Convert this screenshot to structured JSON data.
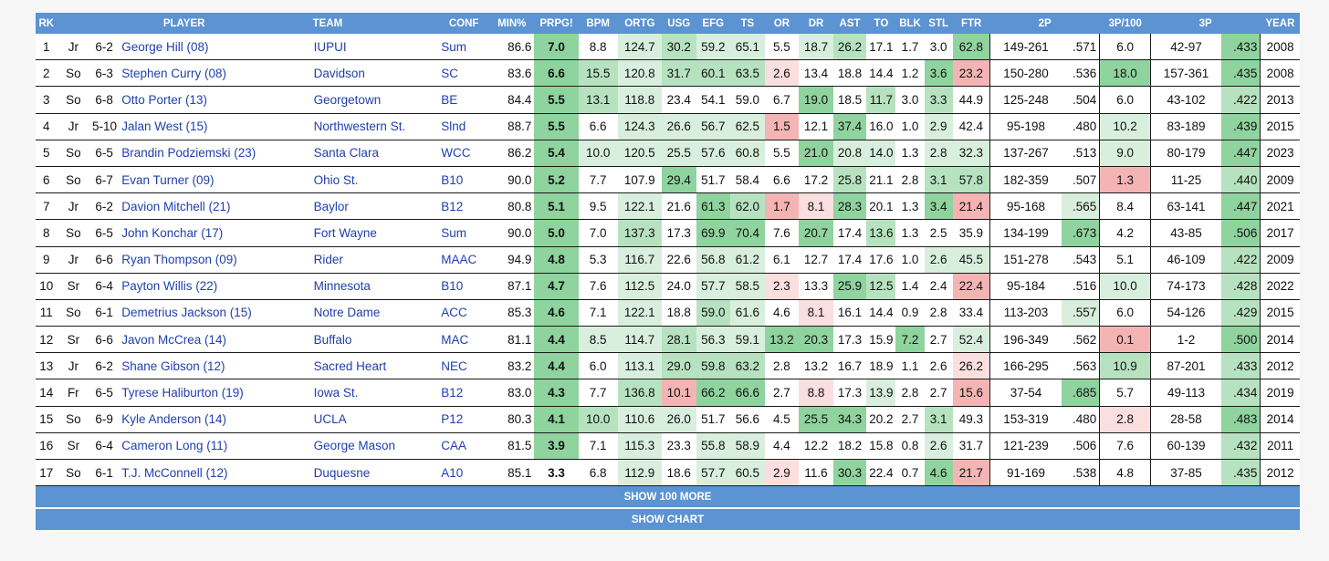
{
  "headers": [
    "RK",
    "PLAYER",
    "TEAM",
    "CONF",
    "MIN%",
    "PRPG!",
    "BPM",
    "ORTG",
    "USG",
    "EFG",
    "TS",
    "OR",
    "DR",
    "AST",
    "TO",
    "BLK",
    "STL",
    "FTR",
    "2P",
    "3P/100",
    "3P",
    "YEAR"
  ],
  "colors": {
    "g1": "#8fd39e",
    "g2": "#b7e2c0",
    "g3": "#d9efdd",
    "r1": "#f4b4b4",
    "r2": "#fbdede"
  },
  "rows": [
    {
      "rk": "1",
      "cls": "Jr",
      "ht": "6-2",
      "player": "George Hill (08)",
      "team": "IUPUI",
      "conf": "Sum",
      "min": "86.6",
      "prpg": "7.0",
      "bpm": "8.8",
      "ortg": "124.7",
      "usg": "30.2",
      "efg": "59.2",
      "ts": "65.1",
      "or": "5.5",
      "dr": "18.7",
      "ast": "26.2",
      "to": "17.1",
      "blk": "1.7",
      "stl": "3.0",
      "ftr": "62.8",
      "p2m": "149-261",
      "p2pct": ".571",
      "p3r": "6.0",
      "p3m": "42-97",
      "p3pct": ".433",
      "year": "2008"
    },
    {
      "rk": "2",
      "cls": "So",
      "ht": "6-3",
      "player": "Stephen Curry (08)",
      "team": "Davidson",
      "conf": "SC",
      "min": "83.6",
      "prpg": "6.6",
      "bpm": "15.5",
      "ortg": "120.8",
      "usg": "31.7",
      "efg": "60.1",
      "ts": "63.5",
      "or": "2.6",
      "dr": "13.4",
      "ast": "18.8",
      "to": "14.4",
      "blk": "1.2",
      "stl": "3.6",
      "ftr": "23.2",
      "p2m": "150-280",
      "p2pct": ".536",
      "p3r": "18.0",
      "p3m": "157-361",
      "p3pct": ".435",
      "year": "2008"
    },
    {
      "rk": "3",
      "cls": "So",
      "ht": "6-8",
      "player": "Otto Porter (13)",
      "team": "Georgetown",
      "conf": "BE",
      "min": "84.4",
      "prpg": "5.5",
      "bpm": "13.1",
      "ortg": "118.8",
      "usg": "23.4",
      "efg": "54.1",
      "ts": "59.0",
      "or": "6.7",
      "dr": "19.0",
      "ast": "18.5",
      "to": "11.7",
      "blk": "3.0",
      "stl": "3.3",
      "ftr": "44.9",
      "p2m": "125-248",
      "p2pct": ".504",
      "p3r": "6.0",
      "p3m": "43-102",
      "p3pct": ".422",
      "year": "2013"
    },
    {
      "rk": "4",
      "cls": "Jr",
      "ht": "5-10",
      "player": "Jalan West (15)",
      "team": "Northwestern St.",
      "conf": "Slnd",
      "min": "88.7",
      "prpg": "5.5",
      "bpm": "6.6",
      "ortg": "124.3",
      "usg": "26.6",
      "efg": "56.7",
      "ts": "62.5",
      "or": "1.5",
      "dr": "12.1",
      "ast": "37.4",
      "to": "16.0",
      "blk": "1.0",
      "stl": "2.9",
      "ftr": "42.4",
      "p2m": "95-198",
      "p2pct": ".480",
      "p3r": "10.2",
      "p3m": "83-189",
      "p3pct": ".439",
      "year": "2015"
    },
    {
      "rk": "5",
      "cls": "So",
      "ht": "6-5",
      "player": "Brandin Podziemski (23)",
      "team": "Santa Clara",
      "conf": "WCC",
      "min": "86.2",
      "prpg": "5.4",
      "bpm": "10.0",
      "ortg": "120.5",
      "usg": "25.5",
      "efg": "57.6",
      "ts": "60.8",
      "or": "5.5",
      "dr": "21.0",
      "ast": "20.8",
      "to": "14.0",
      "blk": "1.3",
      "stl": "2.8",
      "ftr": "32.3",
      "p2m": "137-267",
      "p2pct": ".513",
      "p3r": "9.0",
      "p3m": "80-179",
      "p3pct": ".447",
      "year": "2023"
    },
    {
      "rk": "6",
      "cls": "So",
      "ht": "6-7",
      "player": "Evan Turner (09)",
      "team": "Ohio St.",
      "conf": "B10",
      "min": "90.0",
      "prpg": "5.2",
      "bpm": "7.7",
      "ortg": "107.9",
      "usg": "29.4",
      "efg": "51.7",
      "ts": "58.4",
      "or": "6.6",
      "dr": "17.2",
      "ast": "25.8",
      "to": "21.1",
      "blk": "2.8",
      "stl": "3.1",
      "ftr": "57.8",
      "p2m": "182-359",
      "p2pct": ".507",
      "p3r": "1.3",
      "p3m": "11-25",
      "p3pct": ".440",
      "year": "2009"
    },
    {
      "rk": "7",
      "cls": "Jr",
      "ht": "6-2",
      "player": "Davion Mitchell (21)",
      "team": "Baylor",
      "conf": "B12",
      "min": "80.8",
      "prpg": "5.1",
      "bpm": "9.5",
      "ortg": "122.1",
      "usg": "21.6",
      "efg": "61.3",
      "ts": "62.0",
      "or": "1.7",
      "dr": "8.1",
      "ast": "28.3",
      "to": "20.1",
      "blk": "1.3",
      "stl": "3.4",
      "ftr": "21.4",
      "p2m": "95-168",
      "p2pct": ".565",
      "p3r": "8.4",
      "p3m": "63-141",
      "p3pct": ".447",
      "year": "2021"
    },
    {
      "rk": "8",
      "cls": "So",
      "ht": "6-5",
      "player": "John Konchar (17)",
      "team": "Fort Wayne",
      "conf": "Sum",
      "min": "90.0",
      "prpg": "5.0",
      "bpm": "7.0",
      "ortg": "137.3",
      "usg": "17.3",
      "efg": "69.9",
      "ts": "70.4",
      "or": "7.6",
      "dr": "20.7",
      "ast": "17.4",
      "to": "13.6",
      "blk": "1.3",
      "stl": "2.5",
      "ftr": "35.9",
      "p2m": "134-199",
      "p2pct": ".673",
      "p3r": "4.2",
      "p3m": "43-85",
      "p3pct": ".506",
      "year": "2017"
    },
    {
      "rk": "9",
      "cls": "Jr",
      "ht": "6-6",
      "player": "Ryan Thompson (09)",
      "team": "Rider",
      "conf": "MAAC",
      "min": "94.9",
      "prpg": "4.8",
      "bpm": "5.3",
      "ortg": "116.7",
      "usg": "22.6",
      "efg": "56.8",
      "ts": "61.2",
      "or": "6.1",
      "dr": "12.7",
      "ast": "17.4",
      "to": "17.6",
      "blk": "1.0",
      "stl": "2.6",
      "ftr": "45.5",
      "p2m": "151-278",
      "p2pct": ".543",
      "p3r": "5.1",
      "p3m": "46-109",
      "p3pct": ".422",
      "year": "2009"
    },
    {
      "rk": "10",
      "cls": "Sr",
      "ht": "6-4",
      "player": "Payton Willis (22)",
      "team": "Minnesota",
      "conf": "B10",
      "min": "87.1",
      "prpg": "4.7",
      "bpm": "7.6",
      "ortg": "112.5",
      "usg": "24.0",
      "efg": "57.7",
      "ts": "58.5",
      "or": "2.3",
      "dr": "13.3",
      "ast": "25.9",
      "to": "12.5",
      "blk": "1.4",
      "stl": "2.4",
      "ftr": "22.4",
      "p2m": "95-184",
      "p2pct": ".516",
      "p3r": "10.0",
      "p3m": "74-173",
      "p3pct": ".428",
      "year": "2022"
    },
    {
      "rk": "11",
      "cls": "So",
      "ht": "6-1",
      "player": "Demetrius Jackson (15)",
      "team": "Notre Dame",
      "conf": "ACC",
      "min": "85.3",
      "prpg": "4.6",
      "bpm": "7.1",
      "ortg": "122.1",
      "usg": "18.8",
      "efg": "59.0",
      "ts": "61.6",
      "or": "4.6",
      "dr": "8.1",
      "ast": "16.1",
      "to": "14.4",
      "blk": "0.9",
      "stl": "2.8",
      "ftr": "33.4",
      "p2m": "113-203",
      "p2pct": ".557",
      "p3r": "6.0",
      "p3m": "54-126",
      "p3pct": ".429",
      "year": "2015"
    },
    {
      "rk": "12",
      "cls": "Sr",
      "ht": "6-6",
      "player": "Javon McCrea (14)",
      "team": "Buffalo",
      "conf": "MAC",
      "min": "81.1",
      "prpg": "4.4",
      "bpm": "8.5",
      "ortg": "114.7",
      "usg": "28.1",
      "efg": "56.3",
      "ts": "59.1",
      "or": "13.2",
      "dr": "20.3",
      "ast": "17.3",
      "to": "15.9",
      "blk": "7.2",
      "stl": "2.7",
      "ftr": "52.4",
      "p2m": "196-349",
      "p2pct": ".562",
      "p3r": "0.1",
      "p3m": "1-2",
      "p3pct": ".500",
      "year": "2014"
    },
    {
      "rk": "13",
      "cls": "Jr",
      "ht": "6-2",
      "player": "Shane Gibson (12)",
      "team": "Sacred Heart",
      "conf": "NEC",
      "min": "83.2",
      "prpg": "4.4",
      "bpm": "6.0",
      "ortg": "113.1",
      "usg": "29.0",
      "efg": "59.8",
      "ts": "63.2",
      "or": "2.8",
      "dr": "13.2",
      "ast": "16.7",
      "to": "18.9",
      "blk": "1.1",
      "stl": "2.6",
      "ftr": "26.2",
      "p2m": "166-295",
      "p2pct": ".563",
      "p3r": "10.9",
      "p3m": "87-201",
      "p3pct": ".433",
      "year": "2012"
    },
    {
      "rk": "14",
      "cls": "Fr",
      "ht": "6-5",
      "player": "Tyrese Haliburton (19)",
      "team": "Iowa St.",
      "conf": "B12",
      "min": "83.0",
      "prpg": "4.3",
      "bpm": "7.7",
      "ortg": "136.8",
      "usg": "10.1",
      "efg": "66.2",
      "ts": "66.6",
      "or": "2.7",
      "dr": "8.8",
      "ast": "17.3",
      "to": "13.9",
      "blk": "2.8",
      "stl": "2.7",
      "ftr": "15.6",
      "p2m": "37-54",
      "p2pct": ".685",
      "p3r": "5.7",
      "p3m": "49-113",
      "p3pct": ".434",
      "year": "2019"
    },
    {
      "rk": "15",
      "cls": "So",
      "ht": "6-9",
      "player": "Kyle Anderson (14)",
      "team": "UCLA",
      "conf": "P12",
      "min": "80.3",
      "prpg": "4.1",
      "bpm": "10.0",
      "ortg": "110.6",
      "usg": "26.0",
      "efg": "51.7",
      "ts": "56.6",
      "or": "4.5",
      "dr": "25.5",
      "ast": "34.3",
      "to": "20.2",
      "blk": "2.7",
      "stl": "3.1",
      "ftr": "49.3",
      "p2m": "153-319",
      "p2pct": ".480",
      "p3r": "2.8",
      "p3m": "28-58",
      "p3pct": ".483",
      "year": "2014"
    },
    {
      "rk": "16",
      "cls": "Sr",
      "ht": "6-4",
      "player": "Cameron Long (11)",
      "team": "George Mason",
      "conf": "CAA",
      "min": "81.5",
      "prpg": "3.9",
      "bpm": "7.1",
      "ortg": "115.3",
      "usg": "23.3",
      "efg": "55.8",
      "ts": "58.9",
      "or": "4.4",
      "dr": "12.2",
      "ast": "18.2",
      "to": "15.8",
      "blk": "0.8",
      "stl": "2.6",
      "ftr": "31.7",
      "p2m": "121-239",
      "p2pct": ".506",
      "p3r": "7.6",
      "p3m": "60-139",
      "p3pct": ".432",
      "year": "2011"
    },
    {
      "rk": "17",
      "cls": "So",
      "ht": "6-1",
      "player": "T.J. McConnell (12)",
      "team": "Duquesne",
      "conf": "A10",
      "min": "85.1",
      "prpg": "3.3",
      "bpm": "6.8",
      "ortg": "112.9",
      "usg": "18.6",
      "efg": "57.7",
      "ts": "60.5",
      "or": "2.9",
      "dr": "11.6",
      "ast": "30.3",
      "to": "22.4",
      "blk": "0.7",
      "stl": "4.6",
      "ftr": "21.7",
      "p2m": "91-169",
      "p2pct": ".538",
      "p3r": "4.8",
      "p3m": "37-85",
      "p3pct": ".435",
      "year": "2012"
    }
  ],
  "shading": [
    {
      "prpg": "g1",
      "ortg": "g3",
      "usg": "g2",
      "efg": "g3",
      "ts": "g3",
      "dr": "g3",
      "ast": "g2",
      "ftr": "g1",
      "p3pct": "g1"
    },
    {
      "prpg": "g1",
      "bpm": "g2",
      "ortg": "g3",
      "usg": "g2",
      "efg": "g2",
      "ts": "g2",
      "or": "r2",
      "stl": "g1",
      "ftr": "r1",
      "p3r": "g1",
      "p3pct": "g1"
    },
    {
      "prpg": "g1",
      "bpm": "g2",
      "ortg": "g3",
      "dr": "g1",
      "to": "g2",
      "stl": "g2",
      "p3pct": "g2"
    },
    {
      "prpg": "g1",
      "ortg": "g3",
      "usg": "g3",
      "efg": "g3",
      "ts": "g3",
      "or": "r1",
      "ast": "g1",
      "stl": "g3",
      "p3r": "g3",
      "p3pct": "g1"
    },
    {
      "prpg": "g1",
      "bpm": "g3",
      "ortg": "g3",
      "usg": "g3",
      "efg": "g3",
      "ts": "g3",
      "dr": "g1",
      "ast": "g3",
      "to": "g3",
      "stl": "g3",
      "ftr": "g3",
      "p3r": "g3",
      "p3pct": "g1"
    },
    {
      "prpg": "g1",
      "usg": "g1",
      "ast": "g2",
      "stl": "g2",
      "ftr": "g2",
      "p3r": "r1",
      "p3pct": "g2"
    },
    {
      "prpg": "g1",
      "ortg": "g3",
      "efg": "g1",
      "ts": "g2",
      "or": "r1",
      "dr": "r2",
      "ast": "g1",
      "stl": "g1",
      "ftr": "r1",
      "p2pct": "g3",
      "p3pct": "g1"
    },
    {
      "prpg": "g1",
      "ortg": "g2",
      "efg": "g1",
      "ts": "g1",
      "dr": "g1",
      "to": "g2",
      "p2pct": "g1",
      "p3pct": "g1"
    },
    {
      "prpg": "g1",
      "ortg": "g3",
      "efg": "g3",
      "ts": "g3",
      "stl": "g3",
      "ftr": "g3",
      "p3pct": "g2"
    },
    {
      "prpg": "g1",
      "ortg": "g3",
      "efg": "g3",
      "ts": "g3",
      "or": "r2",
      "ast": "g1",
      "to": "g2",
      "ftr": "r1",
      "p3r": "g3",
      "p3pct": "g2"
    },
    {
      "prpg": "g1",
      "ortg": "g3",
      "efg": "g2",
      "ts": "g3",
      "dr": "r2",
      "p2pct": "g3",
      "p3pct": "g2"
    },
    {
      "prpg": "g1",
      "bpm": "g3",
      "ortg": "g3",
      "usg": "g2",
      "efg": "g3",
      "ts": "g3",
      "or": "g1",
      "dr": "g1",
      "blk": "g1",
      "ftr": "g3",
      "p3r": "r1",
      "p3pct": "g1"
    },
    {
      "prpg": "g1",
      "ortg": "g3",
      "usg": "g2",
      "efg": "g2",
      "ts": "g2",
      "ftr": "r2",
      "p3r": "g2",
      "p3pct": "g2"
    },
    {
      "prpg": "g1",
      "ortg": "g2",
      "usg": "r1",
      "efg": "g1",
      "ts": "g1",
      "dr": "r2",
      "to": "g3",
      "ftr": "r1",
      "p2pct": "g1",
      "p3pct": "g2"
    },
    {
      "prpg": "g1",
      "bpm": "g2",
      "ortg": "g3",
      "usg": "g3",
      "dr": "g1",
      "ast": "g1",
      "stl": "g2",
      "p3r": "r2",
      "p3pct": "g1"
    },
    {
      "prpg": "g1",
      "ortg": "g3",
      "efg": "g3",
      "ts": "g3",
      "stl": "g3",
      "p3pct": "g2"
    },
    {
      "ortg": "g3",
      "efg": "g3",
      "ts": "g3",
      "or": "r2",
      "ast": "g1",
      "stl": "g1",
      "ftr": "r1",
      "p3pct": "g2"
    }
  ],
  "footer": {
    "more_label": "SHOW 100 MORE",
    "chart_label": "SHOW CHART"
  }
}
